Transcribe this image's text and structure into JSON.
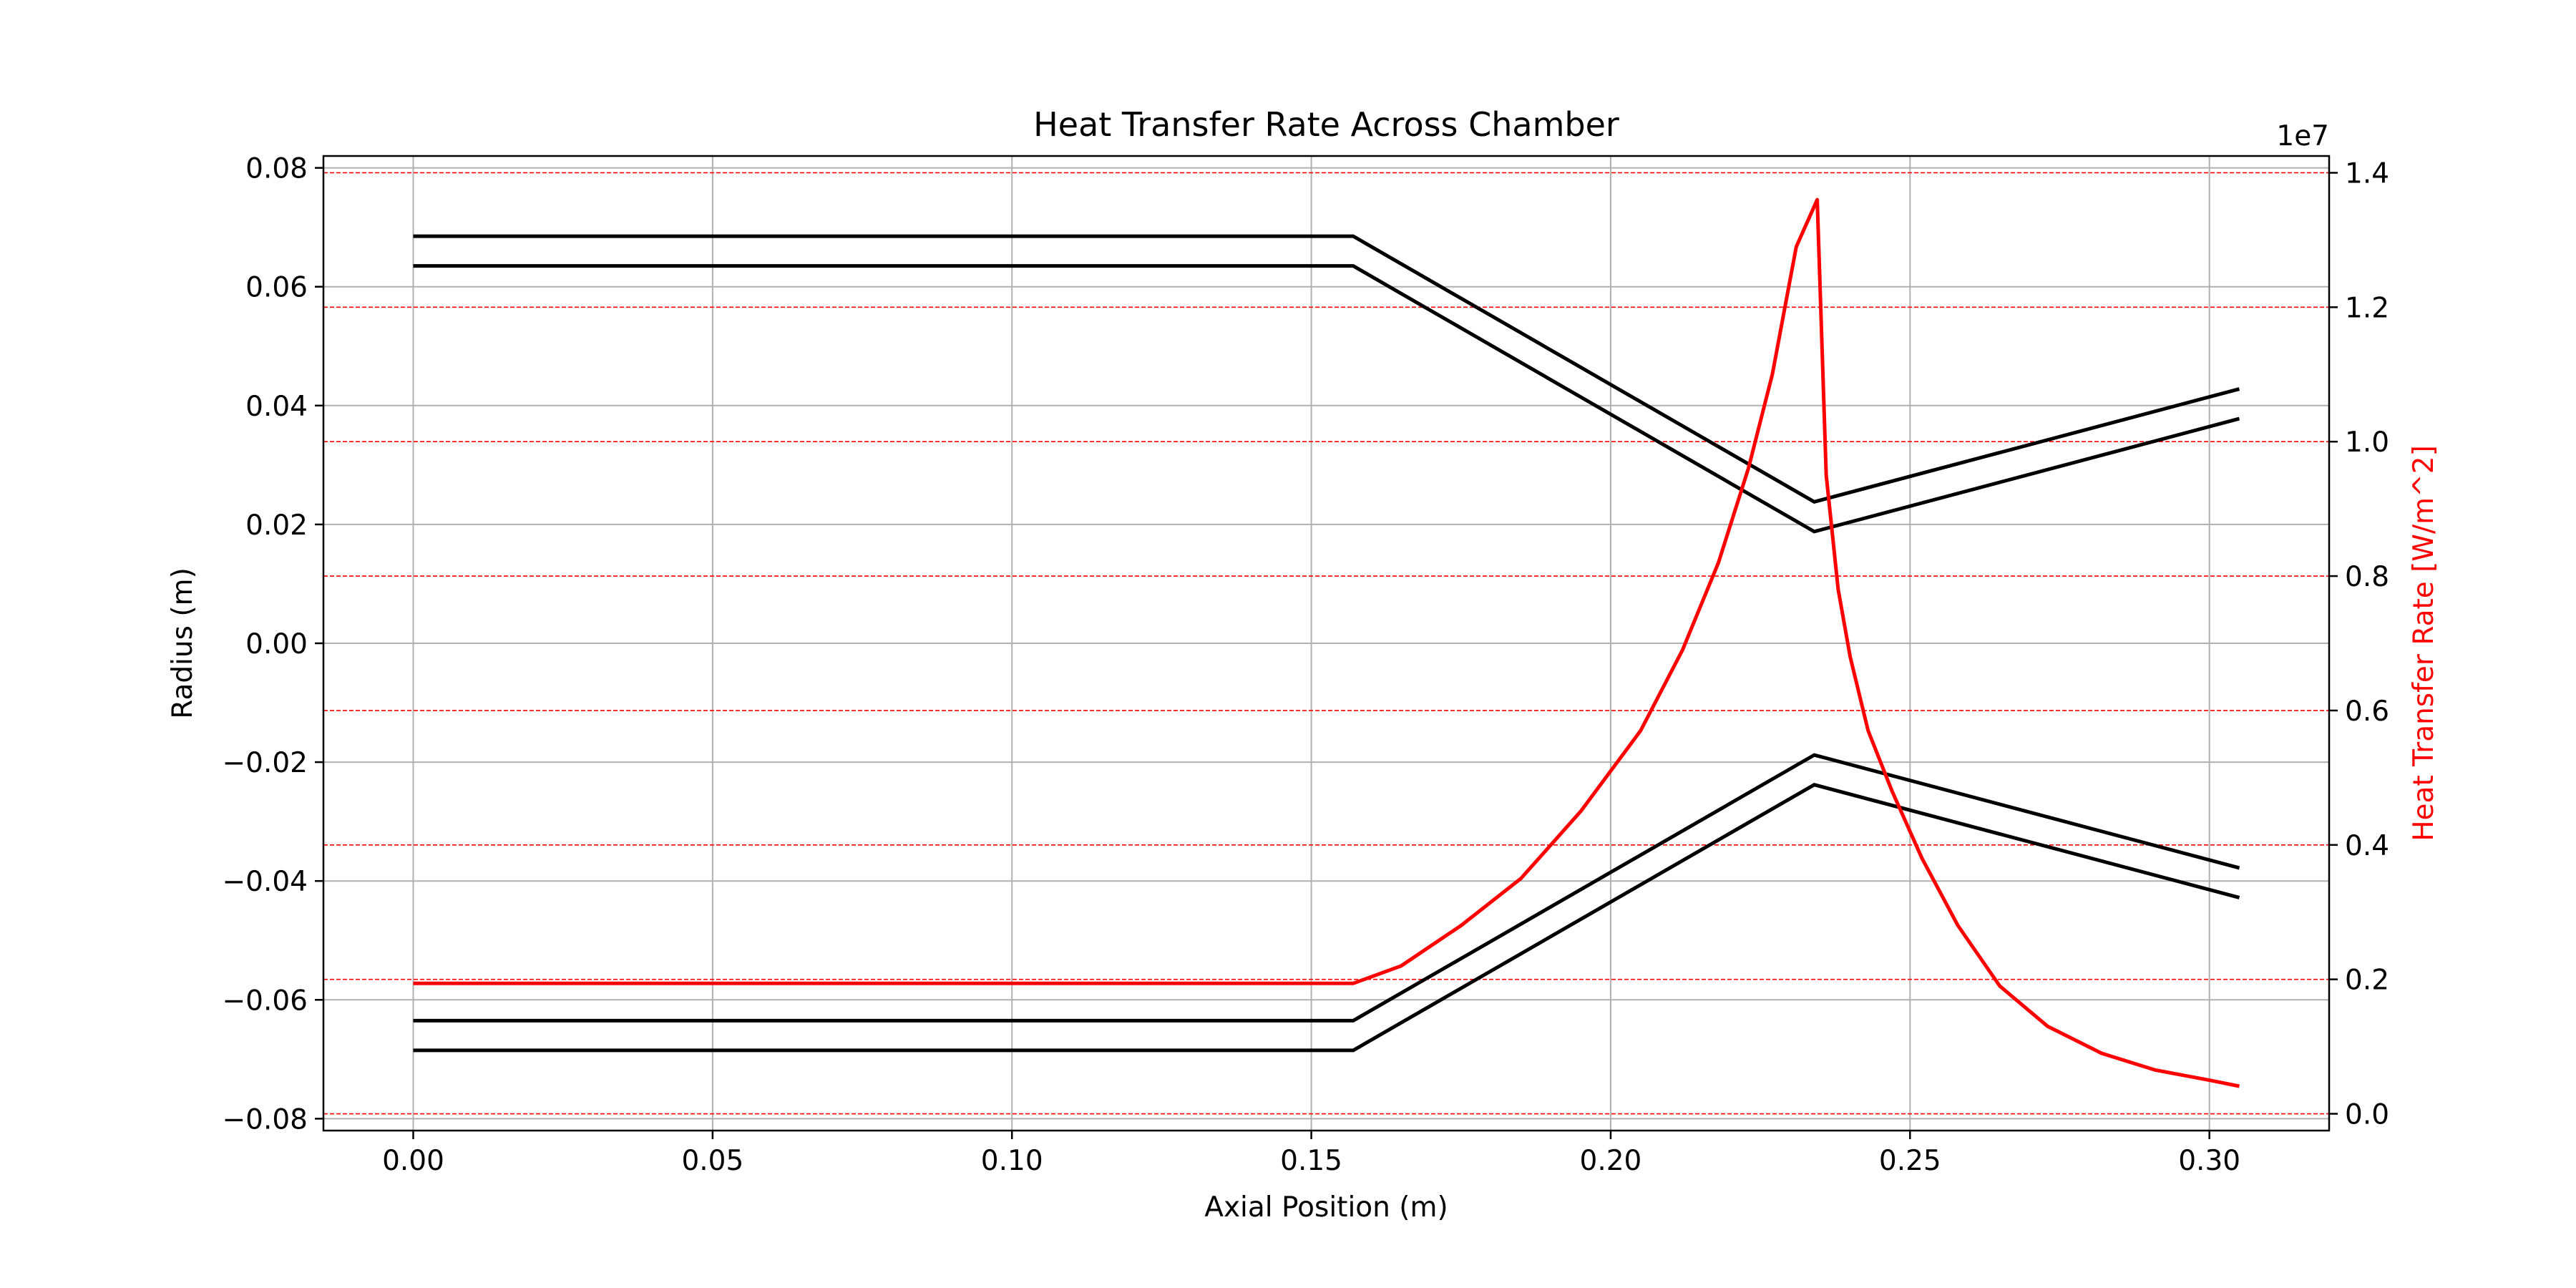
{
  "chart_data": {
    "type": "line",
    "title": "Heat Transfer Rate Across Chamber",
    "xlabel": "Axial Position (m)",
    "ylabel": "Radius (m)",
    "y2label": "Heat Transfer Rate [W/m^2]",
    "y2_offset_text": "1e7",
    "xlim": [
      -0.015,
      0.32
    ],
    "ylim": [
      -0.082,
      0.082
    ],
    "y2lim": [
      -0.025,
      1.425
    ],
    "y2_scale": 10000000,
    "xticks": [
      0.0,
      0.05,
      0.1,
      0.15,
      0.2,
      0.25,
      0.3
    ],
    "xtick_labels": [
      "0.00",
      "0.05",
      "0.10",
      "0.15",
      "0.20",
      "0.25",
      "0.30"
    ],
    "yticks": [
      0.08,
      0.06,
      0.04,
      0.02,
      0.0,
      -0.02,
      -0.04,
      -0.06,
      -0.08
    ],
    "ytick_labels": [
      "0.08",
      "0.06",
      "0.04",
      "0.02",
      "0.00",
      "−0.02",
      "−0.04",
      "−0.06",
      "−0.08"
    ],
    "y2ticks": [
      1.4,
      1.2,
      1.0,
      0.8,
      0.6,
      0.4,
      0.2,
      0.0
    ],
    "y2tick_labels": [
      "1.4",
      "1.2",
      "1.0",
      "0.8",
      "0.6",
      "0.4",
      "0.2",
      "0.0"
    ],
    "grid": true,
    "colors": {
      "contour": "#000000",
      "heat": "#ff0000",
      "grid": "#b0b0b0"
    },
    "contours": [
      {
        "x": [
          0.0,
          0.157,
          0.234,
          0.305
        ],
        "y": [
          0.0685,
          0.0685,
          0.0238,
          0.0428
        ]
      },
      {
        "x": [
          0.0,
          0.157,
          0.234,
          0.305
        ],
        "y": [
          0.0635,
          0.0635,
          0.0188,
          0.0378
        ]
      },
      {
        "x": [
          0.0,
          0.157,
          0.234,
          0.305
        ],
        "y": [
          -0.0635,
          -0.0635,
          -0.0188,
          -0.0378
        ]
      },
      {
        "x": [
          0.0,
          0.157,
          0.234,
          0.305
        ],
        "y": [
          -0.0685,
          -0.0685,
          -0.0238,
          -0.0428
        ]
      }
    ],
    "heat_flux": {
      "x": [
        0.0,
        0.157,
        0.165,
        0.175,
        0.185,
        0.195,
        0.205,
        0.212,
        0.218,
        0.223,
        0.227,
        0.231,
        0.2345,
        0.236,
        0.238,
        0.24,
        0.243,
        0.247,
        0.252,
        0.258,
        0.265,
        0.273,
        0.282,
        0.291,
        0.3,
        0.305
      ],
      "y": [
        0.194,
        0.194,
        0.22,
        0.28,
        0.35,
        0.45,
        0.57,
        0.69,
        0.82,
        0.96,
        1.1,
        1.29,
        1.36,
        0.95,
        0.78,
        0.68,
        0.57,
        0.48,
        0.38,
        0.28,
        0.19,
        0.13,
        0.09,
        0.065,
        0.05,
        0.041
      ]
    }
  }
}
